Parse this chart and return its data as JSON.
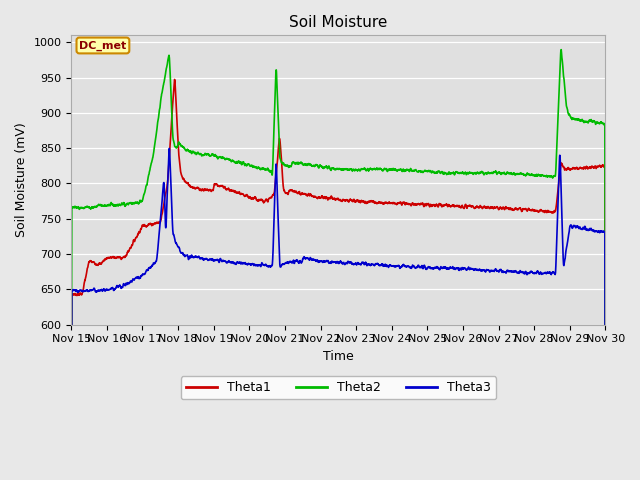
{
  "title": "Soil Moisture",
  "xlabel": "Time",
  "ylabel": "Soil Moisture (mV)",
  "ylim": [
    600,
    1010
  ],
  "yticks": [
    600,
    650,
    700,
    750,
    800,
    850,
    900,
    950,
    1000
  ],
  "xlim": [
    0,
    15
  ],
  "xtick_labels": [
    "Nov 15",
    "Nov 16",
    "Nov 17",
    "Nov 18",
    "Nov 19",
    "Nov 20",
    "Nov 21",
    "Nov 22",
    "Nov 23",
    "Nov 24",
    "Nov 25",
    "Nov 26",
    "Nov 27",
    "Nov 28",
    "Nov 29",
    "Nov 30"
  ],
  "line_colors": {
    "Theta1": "#cc0000",
    "Theta2": "#00bb00",
    "Theta3": "#0000cc"
  },
  "line_width": 1.2,
  "bg_color": "#e8e8e8",
  "plot_bg_color": "#e0e0e0",
  "annotation_text": "DC_met",
  "annotation_box_color": "#ffffaa",
  "annotation_box_edge": "#cc8800"
}
